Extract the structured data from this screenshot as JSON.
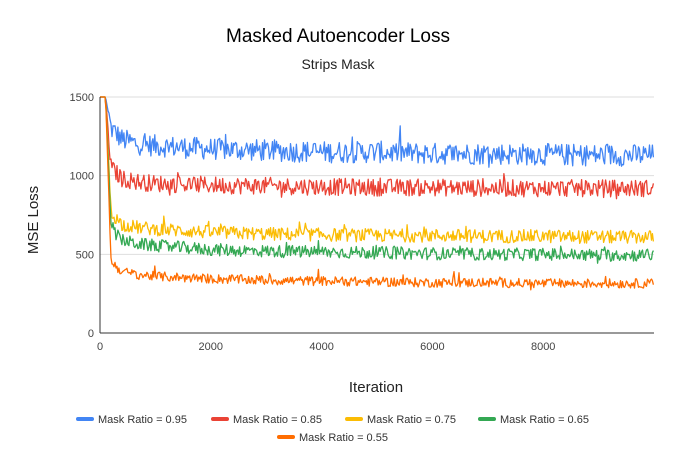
{
  "chart_data": {
    "type": "line",
    "title": "Masked Autoencoder Loss",
    "subtitle": "Strips Mask",
    "xlabel": "Iteration",
    "ylabel": "MSE Loss",
    "xlim": [
      0,
      10000
    ],
    "ylim": [
      0,
      1500
    ],
    "x_ticks": [
      0,
      2000,
      4000,
      6000,
      8000
    ],
    "y_ticks": [
      0,
      500,
      1000,
      1500
    ],
    "grid": "horizontal",
    "legend_position": "bottom",
    "series": [
      {
        "name": "Mask Ratio = 0.95",
        "color": "#4285f4",
        "x": [
          0,
          100,
          200,
          400,
          700,
          1000,
          2000,
          3000,
          4000,
          5000,
          6000,
          7000,
          8000,
          9000,
          10000
        ],
        "values": [
          1500,
          1500,
          1300,
          1230,
          1200,
          1190,
          1170,
          1160,
          1150,
          1150,
          1140,
          1140,
          1135,
          1130,
          1130
        ]
      },
      {
        "name": "Mask Ratio = 0.85",
        "color": "#ea4335",
        "x": [
          0,
          100,
          200,
          400,
          700,
          1000,
          2000,
          3000,
          4000,
          5000,
          6000,
          7000,
          8000,
          9000,
          10000
        ],
        "values": [
          1500,
          1500,
          1050,
          980,
          960,
          950,
          940,
          935,
          930,
          925,
          925,
          920,
          920,
          920,
          920
        ]
      },
      {
        "name": "Mask Ratio = 0.75",
        "color": "#fbbc04",
        "x": [
          0,
          100,
          200,
          400,
          700,
          1000,
          2000,
          3000,
          4000,
          5000,
          6000,
          7000,
          8000,
          9000,
          10000
        ],
        "values": [
          1500,
          1500,
          760,
          690,
          670,
          660,
          640,
          630,
          625,
          620,
          620,
          615,
          615,
          610,
          610
        ]
      },
      {
        "name": "Mask Ratio = 0.65",
        "color": "#34a853",
        "x": [
          0,
          100,
          200,
          400,
          700,
          1000,
          2000,
          3000,
          4000,
          5000,
          6000,
          7000,
          8000,
          9000,
          10000
        ],
        "values": [
          1500,
          1500,
          660,
          590,
          565,
          555,
          530,
          520,
          515,
          510,
          505,
          500,
          500,
          495,
          495
        ]
      },
      {
        "name": "Mask Ratio = 0.55",
        "color": "#ff6d01",
        "x": [
          0,
          100,
          200,
          400,
          700,
          1000,
          2000,
          3000,
          4000,
          5000,
          6000,
          7000,
          8000,
          9000,
          10000
        ],
        "values": [
          1500,
          1500,
          450,
          390,
          370,
          360,
          345,
          335,
          330,
          325,
          320,
          320,
          315,
          315,
          315
        ]
      }
    ]
  }
}
